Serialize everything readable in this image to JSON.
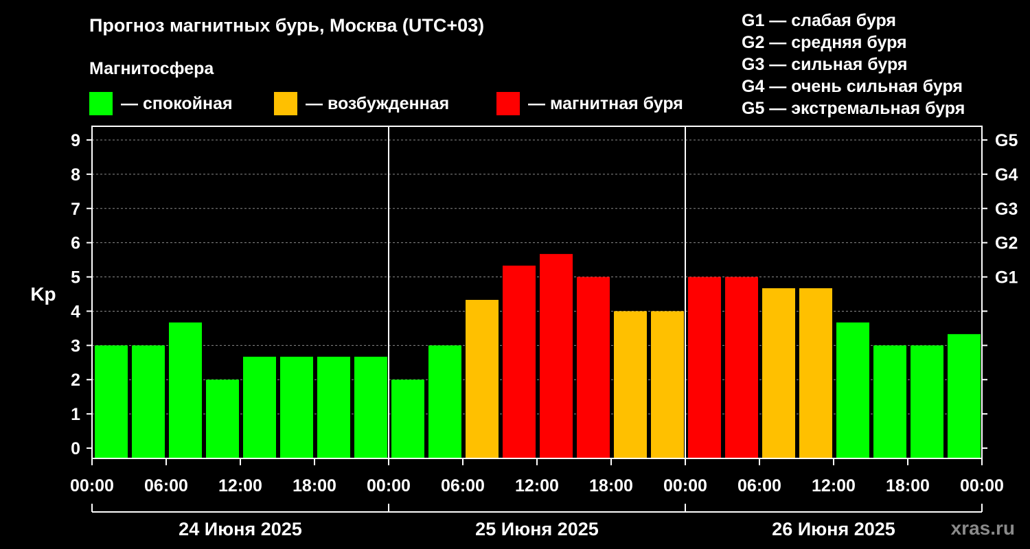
{
  "title": "Прогноз магнитных бурь, Москва (UTC+03)",
  "subtitle": "Магнитосфера",
  "legend": [
    {
      "label": "— спокойная",
      "color": "#00ff00"
    },
    {
      "label": "— возбужденная",
      "color": "#ffc000"
    },
    {
      "label": "— магнитная буря",
      "color": "#ff0000"
    }
  ],
  "storm_levels": [
    "G1 — слабая буря",
    "G2 — средняя буря",
    "G3 — сильная буря",
    "G4 — очень сильная буря",
    "G5 — экстремальная буря"
  ],
  "watermark": "xras.ru",
  "chart_data": {
    "type": "bar",
    "ylabel": "Kp",
    "ylim": [
      -0.3,
      9.4
    ],
    "yticks": [
      "0",
      "1",
      "2",
      "3",
      "4",
      "5",
      "6",
      "7",
      "8",
      "9"
    ],
    "right_ticks": [
      {
        "value": 5,
        "label": "G1"
      },
      {
        "value": 6,
        "label": "G2"
      },
      {
        "value": 7,
        "label": "G3"
      },
      {
        "value": 8,
        "label": "G4"
      },
      {
        "value": 9,
        "label": "G5"
      }
    ],
    "grid": "dashed horizontal",
    "x_tick_labels": [
      "00:00",
      "06:00",
      "12:00",
      "18:00",
      "00:00",
      "06:00",
      "12:00",
      "18:00",
      "00:00",
      "06:00",
      "12:00",
      "18:00",
      "00:00"
    ],
    "days": [
      "24 Июня 2025",
      "25 Июня 2025",
      "26 Июня 2025"
    ],
    "values": [
      3.0,
      3.0,
      3.67,
      2.0,
      2.67,
      2.67,
      2.67,
      2.67,
      2.0,
      3.0,
      4.33,
      5.33,
      5.67,
      5.0,
      4.0,
      4.0,
      5.0,
      5.0,
      4.67,
      4.67,
      3.67,
      3.0,
      3.0,
      3.33
    ],
    "colors": [
      "#00ff00",
      "#00ff00",
      "#00ff00",
      "#00ff00",
      "#00ff00",
      "#00ff00",
      "#00ff00",
      "#00ff00",
      "#00ff00",
      "#00ff00",
      "#ffc000",
      "#ff0000",
      "#ff0000",
      "#ff0000",
      "#ffc000",
      "#ffc000",
      "#ff0000",
      "#ff0000",
      "#ffc000",
      "#ffc000",
      "#00ff00",
      "#00ff00",
      "#00ff00",
      "#00ff00"
    ]
  }
}
